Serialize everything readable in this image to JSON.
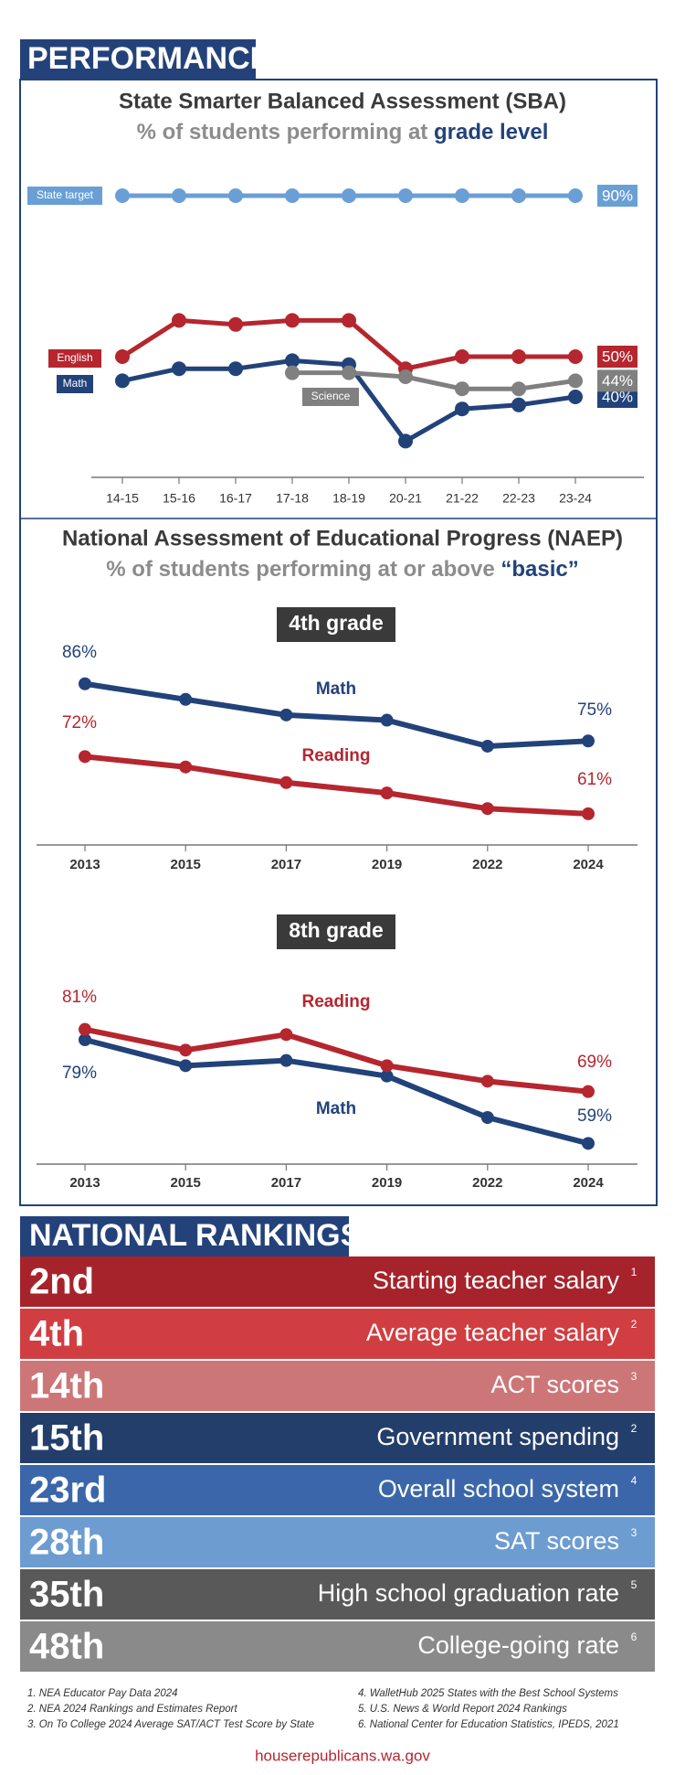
{
  "header": {
    "title": "PERFORMANCE"
  },
  "chart_data": [
    {
      "type": "line",
      "title": "State Smarter Balanced Assessment (SBA)",
      "subtitle": "% of students performing at",
      "subtitle_emphasis": "grade level",
      "categories": [
        "14-15",
        "15-16",
        "16-17",
        "17-18",
        "18-19",
        "20-21",
        "21-22",
        "22-23",
        "23-24"
      ],
      "ylim": [
        20,
        95
      ],
      "series": [
        {
          "name": "State target",
          "color": "#6a9fd6",
          "values": [
            90,
            90,
            90,
            90,
            90,
            90,
            90,
            90,
            90
          ],
          "value_labels": [
            null,
            null,
            null,
            null,
            null,
            null,
            null,
            null,
            "90%"
          ]
        },
        {
          "name": "English",
          "color": "#b5262e",
          "values": [
            50,
            59,
            58,
            59,
            59,
            47,
            50,
            50,
            50
          ],
          "value_labels": [
            null,
            null,
            null,
            null,
            null,
            null,
            null,
            null,
            "50%"
          ]
        },
        {
          "name": "Math",
          "color": "#22427a",
          "values": [
            44,
            47,
            47,
            49,
            48,
            29,
            37,
            38,
            40
          ],
          "value_labels": [
            null,
            null,
            null,
            null,
            null,
            null,
            null,
            null,
            "40%"
          ]
        },
        {
          "name": "Science",
          "color": "#808080",
          "values": [
            null,
            null,
            null,
            46,
            46,
            45,
            42,
            42,
            44
          ],
          "value_labels": [
            null,
            null,
            null,
            null,
            null,
            null,
            null,
            null,
            "44%"
          ]
        }
      ]
    },
    {
      "type": "line",
      "title": "4th grade",
      "categories": [
        "2013",
        "2015",
        "2017",
        "2019",
        "2022",
        "2024"
      ],
      "ylim": [
        55,
        90
      ],
      "series": [
        {
          "name": "Math",
          "color": "#22427a",
          "values": [
            86,
            83,
            80,
            79,
            74,
            75
          ],
          "value_labels": [
            "86%",
            null,
            null,
            null,
            null,
            "75%"
          ]
        },
        {
          "name": "Reading",
          "color": "#b5262e",
          "values": [
            72,
            70,
            67,
            65,
            62,
            61
          ],
          "value_labels": [
            "72%",
            null,
            null,
            null,
            null,
            "61%"
          ]
        }
      ]
    },
    {
      "type": "line",
      "title": "8th grade",
      "categories": [
        "2013",
        "2015",
        "2017",
        "2019",
        "2022",
        "2024"
      ],
      "ylim": [
        55,
        85
      ],
      "series": [
        {
          "name": "Math",
          "color": "#22427a",
          "values": [
            79,
            74,
            75,
            72,
            64,
            59
          ],
          "value_labels": [
            "79%",
            null,
            null,
            null,
            null,
            "59%"
          ]
        },
        {
          "name": "Reading",
          "color": "#b5262e",
          "values": [
            81,
            77,
            80,
            74,
            71,
            69
          ],
          "value_labels": [
            "81%",
            null,
            null,
            null,
            null,
            "69%"
          ]
        }
      ]
    }
  ],
  "naep": {
    "title": "National Assessment of Educational Progress (NAEP)",
    "subtitle": "% of students performing at or above",
    "subtitle_emphasis": "“basic”"
  },
  "rankings": {
    "title": "NATIONAL RANKINGS",
    "rows": [
      {
        "rank": "2nd",
        "label": "Starting teacher salary",
        "note": "1",
        "color": "#a6232b"
      },
      {
        "rank": "4th",
        "label": "Average teacher salary",
        "note": "2",
        "color": "#d13e41"
      },
      {
        "rank": "14th",
        "label": "ACT scores",
        "note": "3",
        "color": "#cd7678"
      },
      {
        "rank": "15th",
        "label": "Government spending",
        "note": "2",
        "color": "#233e6a"
      },
      {
        "rank": "23rd",
        "label": "Overall school system",
        "note": "4",
        "color": "#3b67aa"
      },
      {
        "rank": "28th",
        "label": "SAT scores",
        "note": "3",
        "color": "#6d9cd1"
      },
      {
        "rank": "35th",
        "label": "High school graduation rate",
        "note": "5",
        "color": "#595959"
      },
      {
        "rank": "48th",
        "label": "College-going rate",
        "note": "6",
        "color": "#8a8a8a"
      }
    ]
  },
  "footnotes": [
    "1. NEA Educator Pay Data 2024",
    "2. NEA 2024 Rankings and Estimates Report",
    "3. On To College 2024 Average SAT/ACT Test Score by State",
    "4. WalletHub 2025 States with the Best School Systems",
    "5. U.S. News & World Report 2024 Rankings",
    "6. National Center for Education Statistics, IPEDS, 2021"
  ],
  "footer": "houserepublicans.wa.gov"
}
